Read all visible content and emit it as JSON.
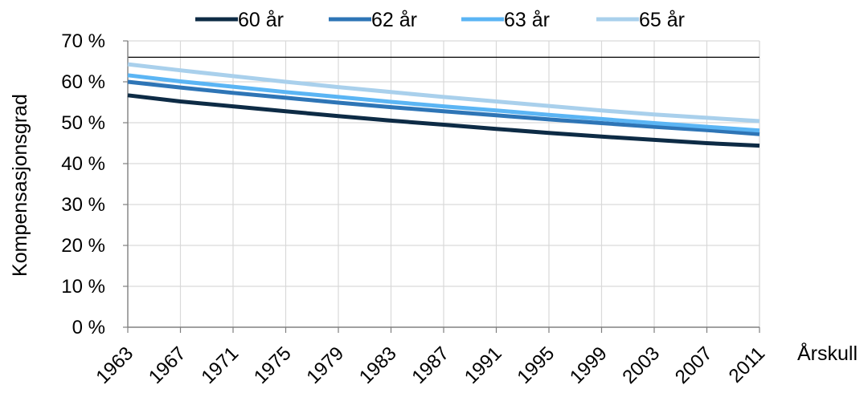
{
  "chart_data": {
    "type": "line",
    "title": "",
    "xlabel": "Årskull",
    "ylabel": "Kompensasjonsgrad",
    "x": [
      1963,
      1967,
      1971,
      1975,
      1979,
      1983,
      1987,
      1991,
      1995,
      1999,
      2003,
      2007,
      2011
    ],
    "x_tick_labels": [
      "1963",
      "1967",
      "1971",
      "1975",
      "1979",
      "1983",
      "1987",
      "1991",
      "1995",
      "1999",
      "2003",
      "2007",
      "2011"
    ],
    "ylim": [
      0,
      70
    ],
    "y_ticks": [
      0,
      10,
      20,
      30,
      40,
      50,
      60,
      70
    ],
    "y_tick_labels": [
      "0 %",
      "10 %",
      "20 %",
      "30 %",
      "40 %",
      "50 %",
      "60 %",
      "70 %"
    ],
    "reference_line": {
      "y": 66,
      "color": "#000000"
    },
    "legend_position": "top",
    "series": [
      {
        "name": "60 år",
        "color": "#0d2b45",
        "values": [
          56.7,
          55.2,
          54.0,
          52.8,
          51.6,
          50.5,
          49.5,
          48.5,
          47.5,
          46.6,
          45.8,
          45.0,
          44.4
        ]
      },
      {
        "name": "62 år",
        "color": "#2e75b6",
        "values": [
          60.0,
          58.6,
          57.3,
          56.1,
          54.9,
          53.8,
          52.8,
          51.8,
          50.8,
          49.9,
          49.0,
          48.2,
          47.2
        ]
      },
      {
        "name": "63 år",
        "color": "#5bb5f4",
        "values": [
          61.6,
          60.1,
          58.8,
          57.5,
          56.3,
          55.1,
          54.0,
          53.0,
          51.9,
          50.9,
          49.9,
          49.0,
          48.1
        ]
      },
      {
        "name": "65 år",
        "color": "#a9d0ec",
        "values": [
          64.3,
          62.8,
          61.4,
          60.0,
          58.7,
          57.5,
          56.3,
          55.2,
          54.1,
          53.0,
          52.0,
          51.2,
          50.4
        ]
      }
    ]
  }
}
